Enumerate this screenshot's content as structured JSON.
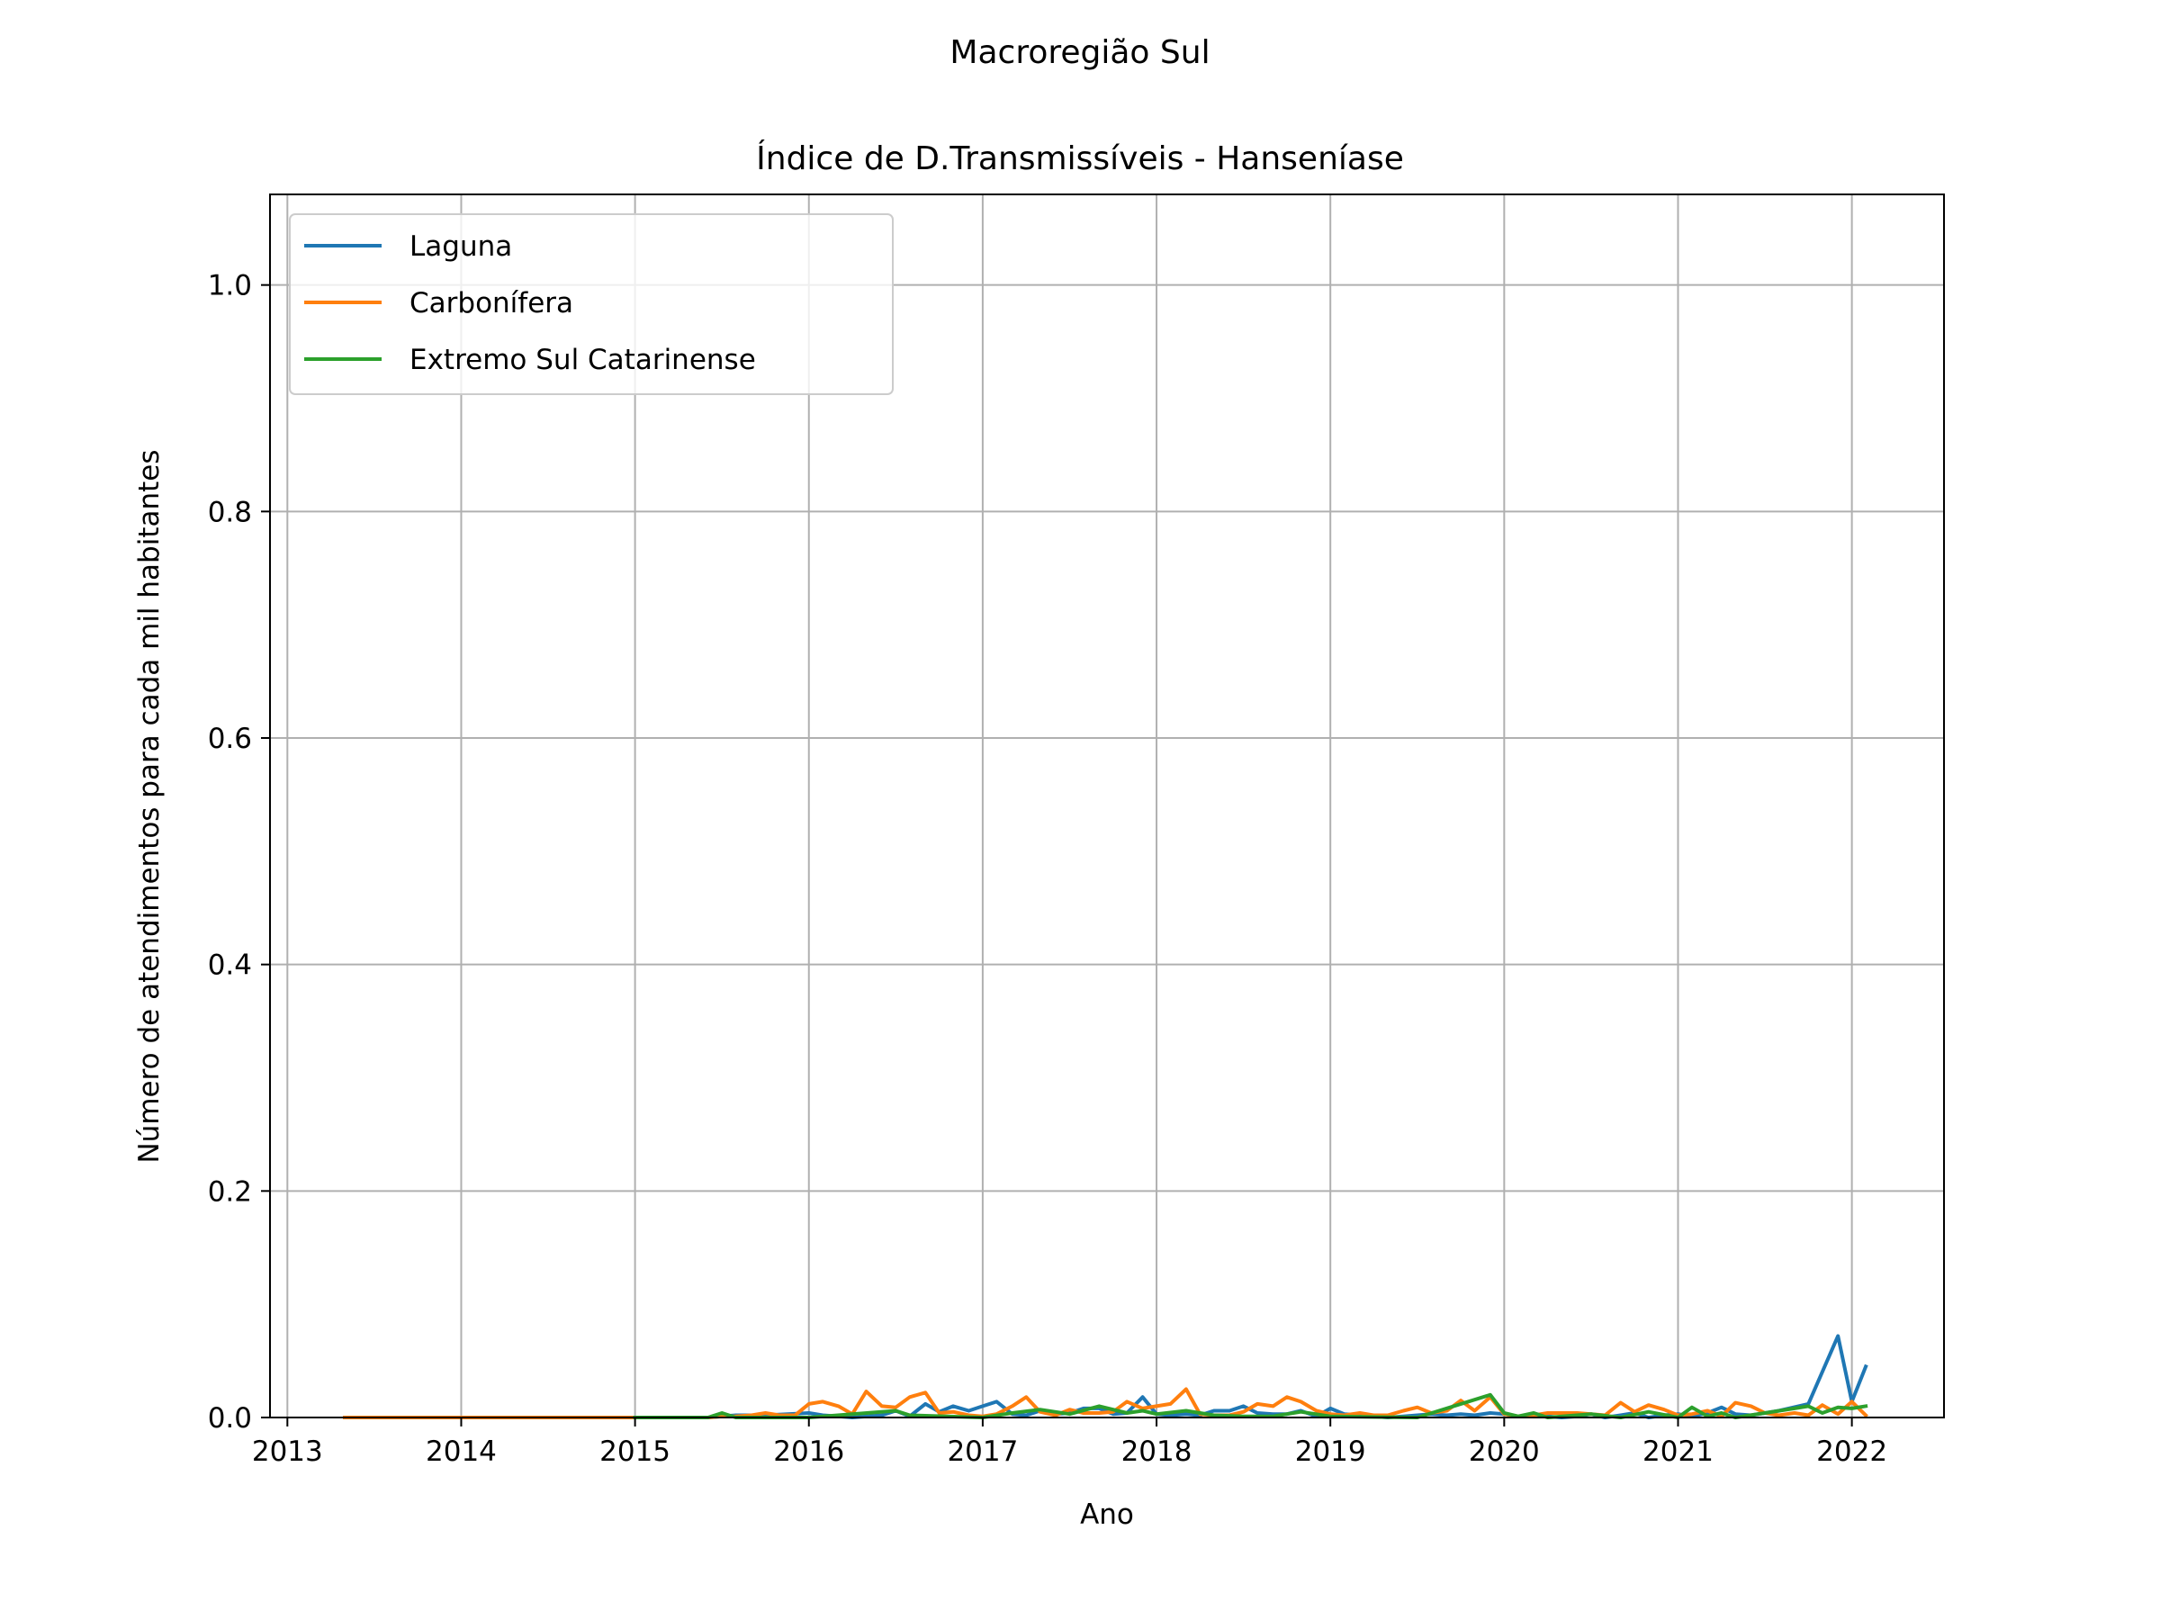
{
  "suptitle": "Macroregião Sul",
  "chart_data": {
    "type": "line",
    "title": "Índice de D.Transmissíveis - Hanseníase",
    "xlabel": "Ano",
    "ylabel": "Número de atendimentos para cada mil habitantes",
    "xlim": [
      2012.9,
      2022.53
    ],
    "ylim": [
      0,
      1.08
    ],
    "xticks": [
      2013,
      2014,
      2015,
      2016,
      2017,
      2018,
      2019,
      2020,
      2021,
      2022
    ],
    "xtick_labels": [
      "2013",
      "2014",
      "2015",
      "2016",
      "2017",
      "2018",
      "2019",
      "2020",
      "2021",
      "2022"
    ],
    "yticks": [
      0,
      0.2,
      0.4,
      0.6,
      0.8,
      1.0
    ],
    "ytick_labels": [
      "0.0",
      "0.2",
      "0.4",
      "0.6",
      "0.8",
      "1.0"
    ],
    "grid": true,
    "legend_position": "upper-left",
    "series": [
      {
        "name": "Laguna",
        "color": "#1f77b4",
        "x": [
          2013.33,
          2014.0,
          2015.0,
          2015.42,
          2015.58,
          2015.75,
          2016.0,
          2016.08,
          2016.17,
          2016.25,
          2016.42,
          2016.5,
          2016.58,
          2016.67,
          2016.75,
          2016.83,
          2016.92,
          2017.0,
          2017.08,
          2017.17,
          2017.25,
          2017.33,
          2017.42,
          2017.5,
          2017.58,
          2017.67,
          2017.75,
          2017.83,
          2017.92,
          2018.0,
          2018.08,
          2018.17,
          2018.25,
          2018.33,
          2018.42,
          2018.5,
          2018.58,
          2018.67,
          2018.75,
          2018.83,
          2018.92,
          2019.0,
          2019.08,
          2019.17,
          2019.25,
          2019.33,
          2019.42,
          2019.5,
          2019.58,
          2019.67,
          2019.75,
          2019.83,
          2019.92,
          2020.0,
          2020.08,
          2020.17,
          2020.25,
          2020.33,
          2020.42,
          2020.5,
          2020.58,
          2020.67,
          2020.75,
          2020.83,
          2020.92,
          2021.0,
          2021.08,
          2021.17,
          2021.25,
          2021.33,
          2021.42,
          2021.5,
          2021.58,
          2021.75,
          2021.92,
          2022.0,
          2022.08
        ],
        "y": [
          0,
          0,
          0,
          0,
          0.002,
          0.002,
          0.004,
          0.002,
          0.001,
          0,
          0.002,
          0.006,
          0.001,
          0.012,
          0.005,
          0.01,
          0.006,
          0.01,
          0.014,
          0.003,
          0.002,
          0.006,
          0.003,
          0.004,
          0.008,
          0.008,
          0.003,
          0.004,
          0.018,
          0.003,
          0.002,
          0.003,
          0.002,
          0.006,
          0.006,
          0.01,
          0.004,
          0.003,
          0.003,
          0.006,
          0.001,
          0.008,
          0.003,
          0.002,
          0.001,
          0,
          0.001,
          0.002,
          0.003,
          0.002,
          0.003,
          0.002,
          0.004,
          0.003,
          0.001,
          0.002,
          0.001,
          0,
          0.001,
          0.003,
          0,
          0.002,
          0.004,
          0,
          0.002,
          0.003,
          0.001,
          0.004,
          0.009,
          0.003,
          0.002,
          0.004,
          0.006,
          0.012,
          0.072,
          0.014,
          0.045
        ]
      },
      {
        "name": "Carbonífera",
        "color": "#ff7f0e",
        "x": [
          2013.33,
          2014.0,
          2015.0,
          2015.42,
          2015.5,
          2015.58,
          2015.67,
          2015.75,
          2015.83,
          2015.92,
          2016.0,
          2016.08,
          2016.17,
          2016.25,
          2016.33,
          2016.42,
          2016.5,
          2016.58,
          2016.67,
          2016.75,
          2016.83,
          2016.92,
          2017.0,
          2017.08,
          2017.17,
          2017.25,
          2017.33,
          2017.42,
          2017.5,
          2017.58,
          2017.67,
          2017.75,
          2017.83,
          2017.92,
          2018.0,
          2018.08,
          2018.17,
          2018.25,
          2018.33,
          2018.42,
          2018.5,
          2018.58,
          2018.67,
          2018.75,
          2018.83,
          2018.92,
          2019.0,
          2019.08,
          2019.17,
          2019.25,
          2019.33,
          2019.42,
          2019.5,
          2019.58,
          2019.67,
          2019.75,
          2019.83,
          2019.92,
          2020.0,
          2020.08,
          2020.17,
          2020.25,
          2020.33,
          2020.42,
          2020.5,
          2020.58,
          2020.67,
          2020.75,
          2020.83,
          2020.92,
          2021.0,
          2021.08,
          2021.17,
          2021.25,
          2021.33,
          2021.42,
          2021.5,
          2021.58,
          2021.67,
          2021.75,
          2021.83,
          2021.92,
          2022.0,
          2022.08
        ],
        "y": [
          0,
          0,
          0,
          0,
          0.001,
          0.001,
          0.002,
          0.004,
          0.002,
          0.002,
          0.012,
          0.014,
          0.01,
          0.003,
          0.023,
          0.01,
          0.009,
          0.018,
          0.022,
          0.004,
          0.005,
          0.002,
          0.001,
          0.003,
          0.01,
          0.018,
          0.005,
          0.002,
          0.007,
          0.004,
          0.004,
          0.005,
          0.014,
          0.008,
          0.01,
          0.012,
          0.025,
          0.003,
          0.002,
          0.002,
          0.005,
          0.012,
          0.01,
          0.018,
          0.014,
          0.006,
          0.003,
          0.002,
          0.004,
          0.002,
          0.002,
          0.006,
          0.009,
          0.004,
          0.006,
          0.015,
          0.006,
          0.018,
          0.003,
          0.001,
          0.002,
          0.004,
          0.004,
          0.004,
          0.003,
          0.002,
          0.013,
          0.005,
          0.011,
          0.007,
          0.002,
          0.003,
          0.006,
          0.001,
          0.013,
          0.01,
          0.004,
          0.002,
          0.004,
          0.002,
          0.011,
          0.003,
          0.014,
          0.002
        ]
      },
      {
        "name": "Extremo Sul Catarinense",
        "color": "#2ca02c",
        "x": [
          2015.0,
          2015.42,
          2015.5,
          2015.58,
          2015.67,
          2016.0,
          2016.5,
          2016.58,
          2017.0,
          2017.17,
          2017.33,
          2017.5,
          2017.67,
          2017.83,
          2017.92,
          2018.0,
          2018.17,
          2018.33,
          2018.5,
          2018.67,
          2018.83,
          2019.0,
          2019.5,
          2019.92,
          2020.0,
          2020.08,
          2020.17,
          2020.25,
          2020.5,
          2020.67,
          2020.83,
          2021.0,
          2021.08,
          2021.17,
          2021.25,
          2021.33,
          2021.5,
          2021.67,
          2021.75,
          2021.83,
          2021.92,
          2022.0,
          2022.08
        ],
        "y": [
          0,
          0,
          0.004,
          0,
          0,
          0,
          0.006,
          0.002,
          0,
          0.004,
          0.007,
          0.003,
          0.01,
          0.004,
          0.006,
          0.003,
          0.006,
          0.002,
          0.001,
          0.001,
          0.005,
          0.001,
          0,
          0.02,
          0.004,
          0.001,
          0.004,
          0,
          0.003,
          0,
          0.005,
          0,
          0.009,
          0.001,
          0.004,
          0,
          0.004,
          0.008,
          0.01,
          0.004,
          0.009,
          0.008,
          0.01
        ]
      }
    ]
  }
}
